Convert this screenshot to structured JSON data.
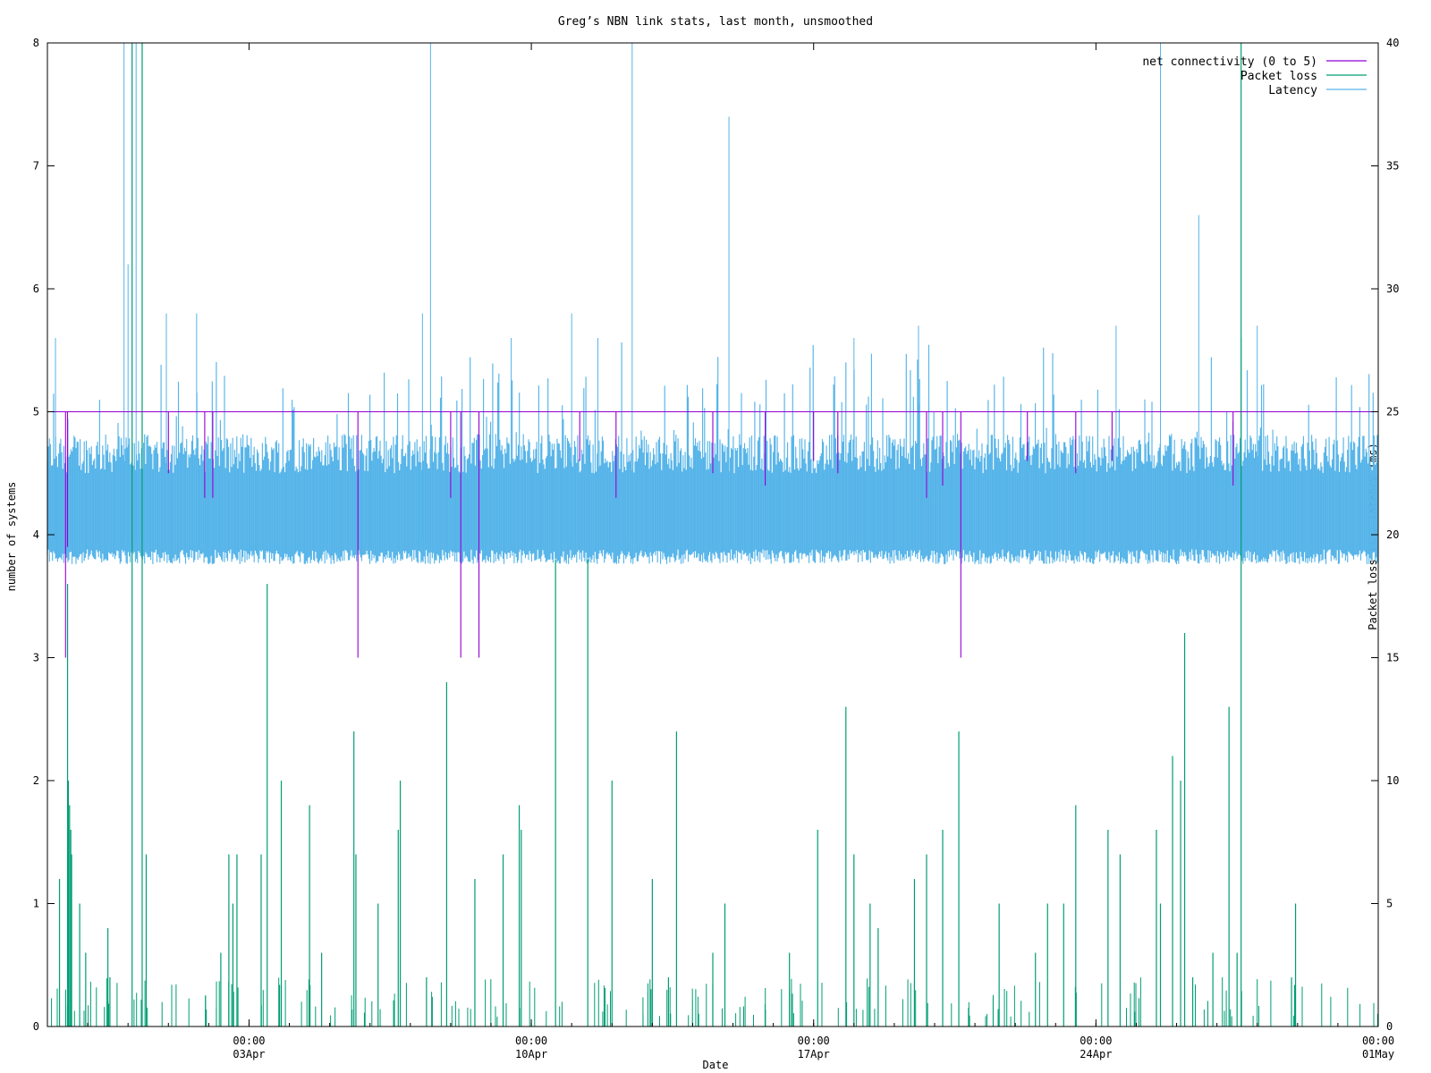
{
  "chart_data": {
    "type": "line",
    "title": "Greg’s NBN link stats, last month, unsmoothed",
    "xlabel": "Date",
    "ylabel": "number of systems",
    "y2label": "Packet loss (%), latency (ms)",
    "ylim": [
      0,
      8
    ],
    "y2lim": [
      0,
      40
    ],
    "yticks": [
      "0",
      "1",
      "2",
      "3",
      "4",
      "5",
      "6",
      "7",
      "8"
    ],
    "y2ticks": [
      "0",
      "5",
      "10",
      "15",
      "20",
      "25",
      "30",
      "35",
      "40"
    ],
    "x_range": [
      "2023-03-29T00:00",
      "2023-05-01T00:00"
    ],
    "xticks": [
      {
        "time": "00:00",
        "date": "03Apr",
        "at": "2023-04-03T00:00"
      },
      {
        "time": "00:00",
        "date": "10Apr",
        "at": "2023-04-10T00:00"
      },
      {
        "time": "00:00",
        "date": "17Apr",
        "at": "2023-04-17T00:00"
      },
      {
        "time": "00:00",
        "date": "24Apr",
        "at": "2023-04-24T00:00"
      },
      {
        "time": "00:00",
        "date": "01May",
        "at": "2023-05-01T00:00"
      }
    ],
    "grid": false,
    "legend_position": "top-right",
    "series": [
      {
        "name": "net connectivity (0 to 5)",
        "color": "#9400d3",
        "axis": "left",
        "baseline": 5,
        "dips": [
          {
            "day": 0.45,
            "value": 3
          },
          {
            "day": 0.5,
            "value": 3.9
          },
          {
            "day": 3.0,
            "value": 4.5
          },
          {
            "day": 3.9,
            "value": 4.3
          },
          {
            "day": 4.1,
            "value": 4.3
          },
          {
            "day": 7.7,
            "value": 3
          },
          {
            "day": 10.25,
            "value": 3
          },
          {
            "day": 10.7,
            "value": 3
          },
          {
            "day": 10.0,
            "value": 4.3
          },
          {
            "day": 13.2,
            "value": 4.6
          },
          {
            "day": 14.1,
            "value": 4.3
          },
          {
            "day": 16.5,
            "value": 4.5
          },
          {
            "day": 17.8,
            "value": 4.4
          },
          {
            "day": 19.0,
            "value": 4.6
          },
          {
            "day": 19.6,
            "value": 4.5
          },
          {
            "day": 21.8,
            "value": 4.3
          },
          {
            "day": 22.2,
            "value": 4.4
          },
          {
            "day": 22.65,
            "value": 3
          },
          {
            "day": 24.3,
            "value": 4.6
          },
          {
            "day": 25.5,
            "value": 4.5
          },
          {
            "day": 26.4,
            "value": 4.6
          },
          {
            "day": 29.4,
            "value": 4.4
          }
        ]
      },
      {
        "name": "Packet loss",
        "color": "#009e73",
        "axis": "right",
        "spikes": [
          {
            "day": 0.3,
            "value": 6
          },
          {
            "day": 0.5,
            "value": 18
          },
          {
            "day": 0.52,
            "value": 10
          },
          {
            "day": 0.55,
            "value": 9
          },
          {
            "day": 0.58,
            "value": 8
          },
          {
            "day": 0.6,
            "value": 7
          },
          {
            "day": 0.8,
            "value": 5
          },
          {
            "day": 0.95,
            "value": 3
          },
          {
            "day": 1.5,
            "value": 4
          },
          {
            "day": 1.55,
            "value": 2
          },
          {
            "day": 2.1,
            "value": 40
          },
          {
            "day": 2.35,
            "value": 40
          },
          {
            "day": 2.45,
            "value": 7
          },
          {
            "day": 4.3,
            "value": 3
          },
          {
            "day": 4.5,
            "value": 7
          },
          {
            "day": 4.6,
            "value": 5
          },
          {
            "day": 4.7,
            "value": 7
          },
          {
            "day": 5.3,
            "value": 7
          },
          {
            "day": 5.45,
            "value": 18
          },
          {
            "day": 5.8,
            "value": 10
          },
          {
            "day": 6.5,
            "value": 9
          },
          {
            "day": 6.8,
            "value": 3
          },
          {
            "day": 7.6,
            "value": 12
          },
          {
            "day": 7.65,
            "value": 7
          },
          {
            "day": 8.2,
            "value": 5
          },
          {
            "day": 8.7,
            "value": 8
          },
          {
            "day": 8.75,
            "value": 10
          },
          {
            "day": 9.4,
            "value": 2
          },
          {
            "day": 9.9,
            "value": 14
          },
          {
            "day": 10.6,
            "value": 6
          },
          {
            "day": 11.3,
            "value": 7
          },
          {
            "day": 11.7,
            "value": 9
          },
          {
            "day": 11.75,
            "value": 8
          },
          {
            "day": 12.6,
            "value": 19
          },
          {
            "day": 13.4,
            "value": 19
          },
          {
            "day": 14.0,
            "value": 10
          },
          {
            "day": 15.0,
            "value": 6
          },
          {
            "day": 15.4,
            "value": 2
          },
          {
            "day": 15.6,
            "value": 12
          },
          {
            "day": 16.8,
            "value": 5
          },
          {
            "day": 16.5,
            "value": 3
          },
          {
            "day": 18.4,
            "value": 3
          },
          {
            "day": 19.1,
            "value": 8
          },
          {
            "day": 19.8,
            "value": 13
          },
          {
            "day": 20.0,
            "value": 7
          },
          {
            "day": 20.4,
            "value": 5
          },
          {
            "day": 20.6,
            "value": 4
          },
          {
            "day": 21.5,
            "value": 6
          },
          {
            "day": 21.8,
            "value": 7
          },
          {
            "day": 22.2,
            "value": 8
          },
          {
            "day": 22.6,
            "value": 12
          },
          {
            "day": 23.6,
            "value": 5
          },
          {
            "day": 24.5,
            "value": 3
          },
          {
            "day": 24.8,
            "value": 5
          },
          {
            "day": 25.5,
            "value": 9
          },
          {
            "day": 25.2,
            "value": 5
          },
          {
            "day": 26.3,
            "value": 8
          },
          {
            "day": 26.6,
            "value": 7
          },
          {
            "day": 27.5,
            "value": 8
          },
          {
            "day": 27.6,
            "value": 5
          },
          {
            "day": 27.9,
            "value": 11
          },
          {
            "day": 28.1,
            "value": 10
          },
          {
            "day": 28.2,
            "value": 16
          },
          {
            "day": 28.4,
            "value": 2
          },
          {
            "day": 28.9,
            "value": 3
          },
          {
            "day": 29.3,
            "value": 13
          },
          {
            "day": 29.5,
            "value": 3
          },
          {
            "day": 29.6,
            "value": 40
          },
          {
            "day": 30.85,
            "value": 2
          },
          {
            "day": 30.95,
            "value": 5
          }
        ]
      },
      {
        "name": "Latency",
        "color": "#56b4e9",
        "axis": "right",
        "band_low": 18.8,
        "band_high": 22.5,
        "spikes": [
          {
            "day": 1.9,
            "value": 40
          },
          {
            "day": 2.0,
            "value": 31
          },
          {
            "day": 2.2,
            "value": 40
          },
          {
            "day": 0.2,
            "value": 28
          },
          {
            "day": 2.95,
            "value": 29
          },
          {
            "day": 3.7,
            "value": 29
          },
          {
            "day": 9.3,
            "value": 29
          },
          {
            "day": 9.5,
            "value": 40
          },
          {
            "day": 11.5,
            "value": 28
          },
          {
            "day": 13.0,
            "value": 29
          },
          {
            "day": 13.65,
            "value": 28
          },
          {
            "day": 14.5,
            "value": 40
          },
          {
            "day": 16.9,
            "value": 37
          },
          {
            "day": 20.0,
            "value": 28
          },
          {
            "day": 21.6,
            "value": 28.5
          },
          {
            "day": 26.5,
            "value": 28.5
          },
          {
            "day": 27.6,
            "value": 40
          },
          {
            "day": 28.55,
            "value": 33
          },
          {
            "day": 29.6,
            "value": 28
          },
          {
            "day": 30.0,
            "value": 28.5
          }
        ]
      }
    ]
  }
}
